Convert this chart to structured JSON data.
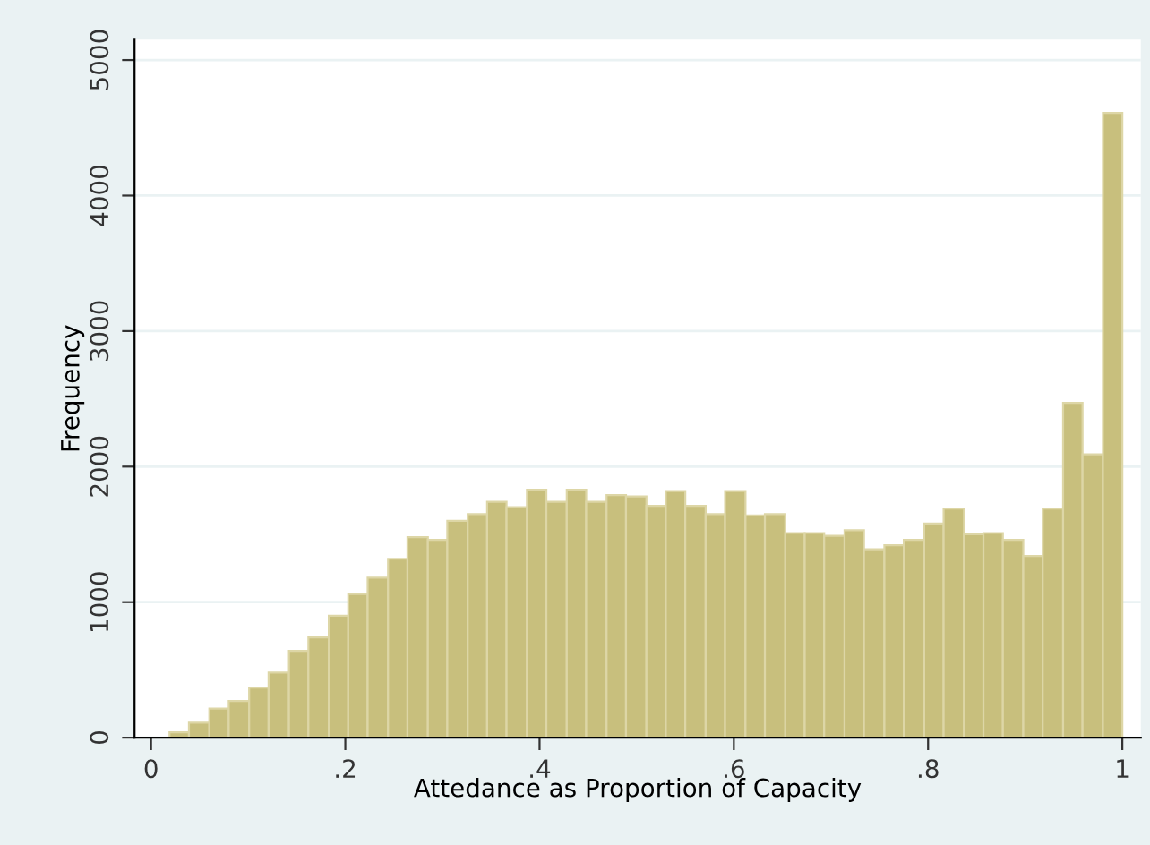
{
  "chart_data": {
    "type": "histogram",
    "xlabel": "Attedance as Proportion of Capacity",
    "ylabel": "Frequency",
    "color": "#c8bf7d",
    "bins": [
      0.019,
      0.039,
      0.06,
      0.08,
      0.101,
      0.121,
      0.142,
      0.162,
      0.183,
      0.203,
      0.223,
      0.244,
      0.264,
      0.285,
      0.305,
      0.326,
      0.346,
      0.366,
      0.387,
      0.407,
      0.428,
      0.448,
      0.469,
      0.489,
      0.51,
      0.53,
      0.55,
      0.571,
      0.591,
      0.612,
      0.632,
      0.653,
      0.673,
      0.693,
      0.714,
      0.734,
      0.755,
      0.775,
      0.796,
      0.816,
      0.837,
      0.857,
      0.877,
      0.898,
      0.918,
      0.939,
      0.959,
      0.98,
      1.0
    ],
    "values": [
      40,
      110,
      215,
      270,
      370,
      480,
      640,
      740,
      900,
      1060,
      1180,
      1320,
      1480,
      1460,
      1600,
      1650,
      1740,
      1700,
      1830,
      1740,
      1830,
      1740,
      1790,
      1780,
      1710,
      1820,
      1710,
      1650,
      1820,
      1640,
      1650,
      1510,
      1510,
      1490,
      1530,
      1390,
      1420,
      1460,
      1580,
      1690,
      1500,
      1510,
      1460,
      1340,
      1690,
      2470,
      2090,
      4610
    ],
    "xlim": [
      -0.017,
      1.019
    ],
    "ylim": [
      0,
      5150
    ],
    "xticks": [
      {
        "value": 0,
        "label": "0"
      },
      {
        "value": 0.2,
        "label": ".2"
      },
      {
        "value": 0.4,
        "label": ".4"
      },
      {
        "value": 0.6,
        "label": ".6"
      },
      {
        "value": 0.8,
        "label": ".8"
      },
      {
        "value": 1,
        "label": "1"
      }
    ],
    "yticks": [
      0,
      1000,
      2000,
      3000,
      4000,
      5000
    ],
    "grid": "y"
  }
}
